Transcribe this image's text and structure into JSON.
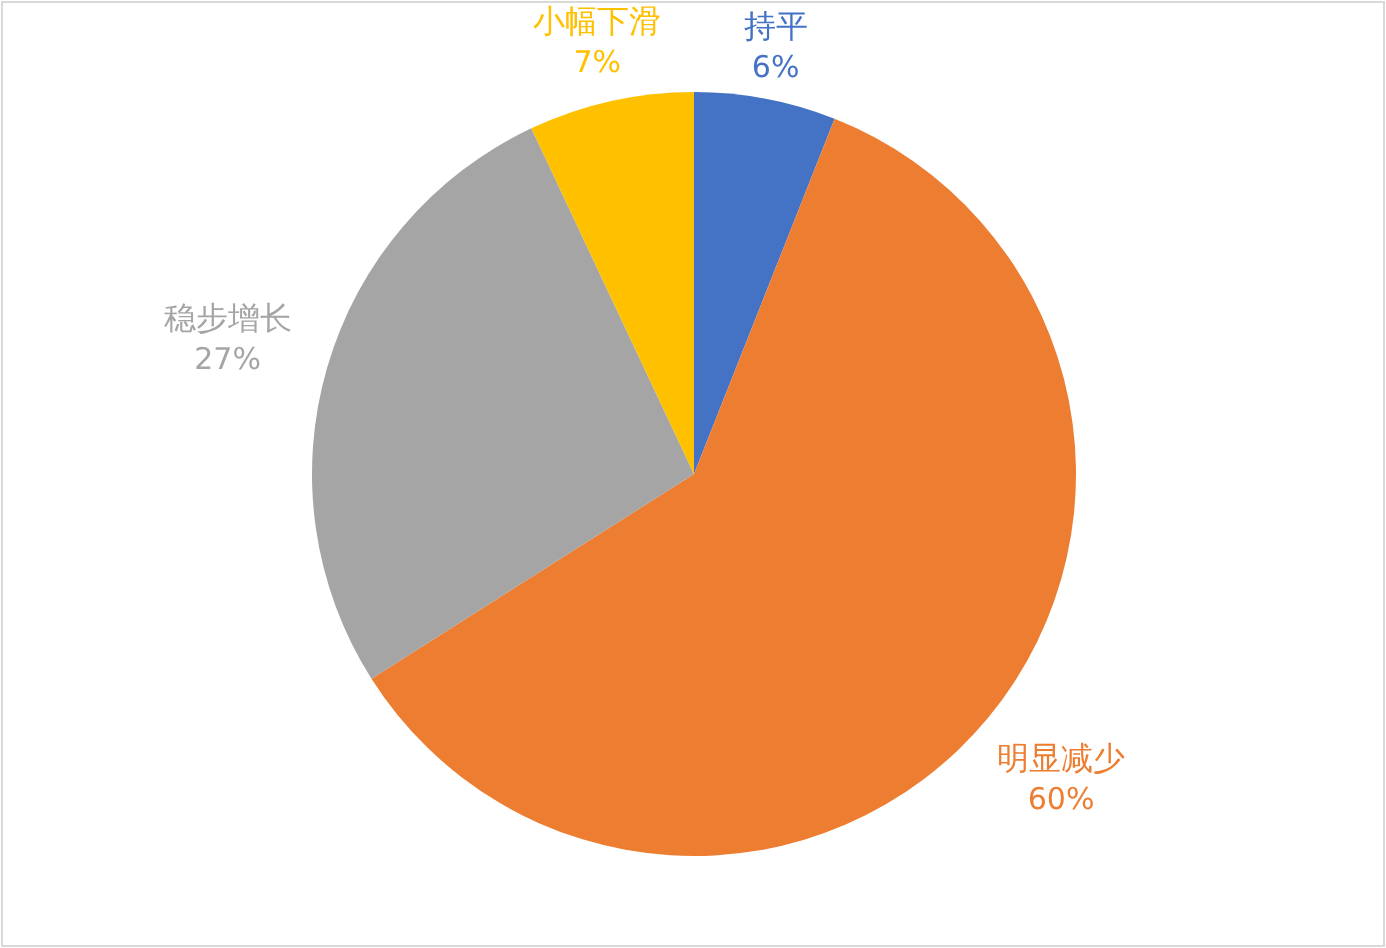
{
  "chart_data": {
    "type": "pie",
    "categories": [
      "持平",
      "明显减少",
      "稳步增长",
      "小幅下滑"
    ],
    "values": [
      6,
      60,
      27,
      7
    ],
    "colors": [
      "#4472c4",
      "#ed7d31",
      "#a5a5a5",
      "#ffc000"
    ],
    "value_labels": [
      "6%",
      "60%",
      "27%",
      "7%"
    ]
  }
}
